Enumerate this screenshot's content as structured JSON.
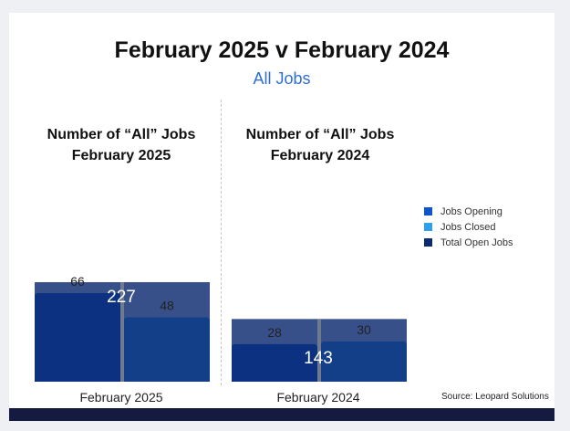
{
  "title": "February 2025 v February 2024",
  "subtitle": "All Jobs",
  "source": "Source: Leopard Solutions",
  "colors": {
    "opening": "#0c55cc",
    "closed": "#2ea0ec",
    "total": "#0c2a70"
  },
  "chart_data": {
    "type": "bar",
    "title": "February 2025 v February 2024",
    "subtitle": "All Jobs",
    "legend": [
      "Jobs Opening",
      "Jobs Closed",
      "Total Open Jobs"
    ],
    "legend_position": "right",
    "grid": false,
    "panels": [
      {
        "title_line1": "Number of “All” Jobs",
        "title_line2": "February 2025",
        "category": "February 2025",
        "jobs_opening": 66,
        "jobs_closed": 48,
        "total_open_jobs": 227
      },
      {
        "title_line1": "Number of “All” Jobs",
        "title_line2": "February 2024",
        "category": "February 2024",
        "jobs_opening": 28,
        "jobs_closed": 30,
        "total_open_jobs": 143
      }
    ]
  }
}
